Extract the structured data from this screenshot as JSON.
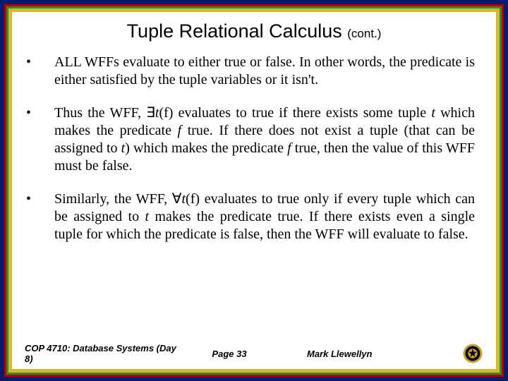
{
  "title": {
    "main": "Tuple Relational Calculus",
    "cont": "(cont.)"
  },
  "bullets": [
    {
      "html": "ALL WFFs evaluate to either true or false.  In other words, the predicate is either satisfied by the tuple variables or it isn't."
    },
    {
      "html": "Thus the WFF, ∃<span class='ital'>t</span>(f)  evaluates to true if there exists some tuple <span class='ital'>t</span> which makes the predicate <span class='ital'>f</span> true.  If there does not exist a tuple (that can be assigned to <span class='ital'>t</span>) which makes the predicate <span class='ital'>f</span> true, then the value of this WFF must be false."
    },
    {
      "html": "Similarly, the WFF, ∀<span class='ital'>t</span>(f) evaluates to true only if every tuple which can be assigned to <span class='ital'>t</span> makes the predicate true.  If there exists even a single tuple for which the predicate is false, then the WFF will evaluate to false."
    }
  ],
  "footer": {
    "left": "COP 4710: Database Systems (Day 8)",
    "mid": "Page 33",
    "right": "Mark Llewellyn"
  },
  "colors": {
    "frame_outer": "#0a1a6b",
    "frame_red": "#c00000",
    "frame_green": "#2e8b2e",
    "frame_yellow": "#d4b830",
    "background": "#ffffff",
    "logo_gold": "#c9a227",
    "logo_black": "#000000"
  }
}
